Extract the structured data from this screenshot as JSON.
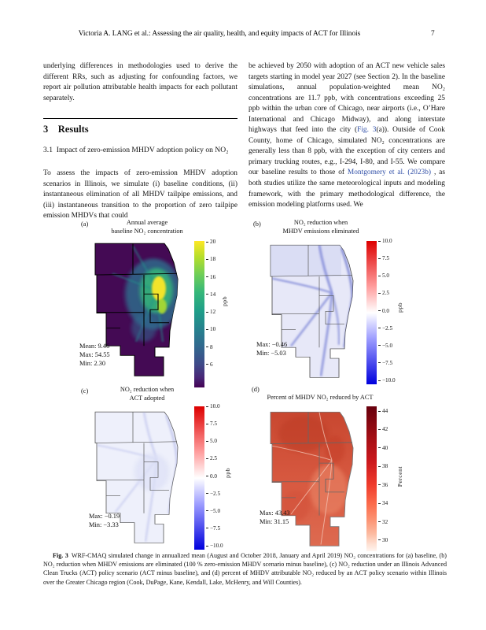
{
  "header": {
    "running_title": "Victoria A. LANG et al.: Assessing the air quality, health, and equity impacts of ACT for Illinois",
    "page_number": "7"
  },
  "left_column": {
    "para1": "underlying differences in methodologies used to derive the different RRs, such as adjusting for confounding factors, we report air pollution attributable health impacts for each pollutant separately.",
    "section_heading": "3 Results",
    "subsection_heading": "3.1 Impact of zero-emission MHDV adoption policy on NO₂",
    "para2": "To assess the impacts of zero-emission MHDV adoption scenarios in Illinois, we simulate (i) baseline conditions, (ii) instantaneous elimination of all MHDV tailpipe emissions, and (iii) instantaneous transition to the proportion of zero tailpipe emission MHDVs that could"
  },
  "right_column": {
    "segments": [
      {
        "t": "be achieved by 2050 with adoption of an ACT new vehicle sales targets starting in model year 2027 (see Section 2). In the baseline simulations, annual population-weighted mean NO₂ concentrations are 11.7 ppb, with concentrations exceeding 25 ppb within the urban core of Chicago, near airports (i.e., O’Hare International and Chicago Midway), and along interstate highways that feed into the city ("
      },
      {
        "t": "Fig. 3",
        "link": true
      },
      {
        "t": "(a)). Outside of Cook County, home of Chicago, simulated NO₂ concentrations are generally less than 8 ppb, with the exception of city centers and primary trucking routes, e.g., I-294, I-80, and I-55. We compare our baseline results to those of "
      },
      {
        "t": "Montgomery et al. (2023b)",
        "link": true
      },
      {
        "t": " , as both studies utilize the same meteorological inputs and modeling framework, with the primary methodological difference, the emission modeling platforms used. We"
      }
    ]
  },
  "figure": {
    "panels": {
      "a": {
        "label": "(a)",
        "title1": "Annual average",
        "title2": "baseline NO₂ concentration",
        "stats": [
          "Mean: 9.46",
          "Max: 54.55",
          "Min: 2.30"
        ],
        "colorbar": {
          "ticks": [
            "20",
            "18",
            "16",
            "14",
            "12",
            "10",
            "8",
            "6"
          ],
          "unit": "ppb",
          "colormap": "viridis"
        }
      },
      "b": {
        "label": "(b)",
        "title1": "NO₂ reduction when",
        "title2": "MHDV emissions eliminated",
        "stats": [
          "Max: −0.46",
          "Min: −5.03"
        ],
        "colorbar": {
          "ticks": [
            "10.0",
            "7.5",
            "5.0",
            "2.5",
            "0.0",
            "−2.5",
            "−5.0",
            "−7.5",
            "−10.0"
          ],
          "unit": "ppb",
          "colormap": "bwr"
        }
      },
      "c": {
        "label": "(c)",
        "title1": "NO₂ reduction when",
        "title2": "ACT adopted",
        "stats": [
          "Max: −0.19",
          "Min: −3.33"
        ],
        "colorbar": {
          "ticks": [
            "10.0",
            "7.5",
            "5.0",
            "2.5",
            "0.0",
            "−2.5",
            "−5.0",
            "−7.5",
            "−10.0"
          ],
          "unit": "ppb",
          "colormap": "bwr"
        }
      },
      "d": {
        "label": "(d)",
        "title1": "Percent of MHDV NO₂ reduced by ACT",
        "title2": "",
        "stats": [
          "Max: 43.43",
          "Min: 31.15"
        ],
        "colorbar": {
          "ticks": [
            "44",
            "42",
            "40",
            "38",
            "36",
            "34",
            "32",
            "30"
          ],
          "unit": "Percent",
          "colormap": "reds"
        }
      }
    },
    "caption_segments": [
      {
        "t": "Fig. 3",
        "b": true
      },
      {
        "t": " WRF-CMAQ simulated change in annualized mean (August and October 2018, January and April 2019) NO₂ concentrations for (a) baseline, (b) NO₂ reduction when MHDV emissions are eliminated (100 % zero-emission MHDV scenario minus baseline), (c) NO₂ reduction under an Illinois Advanced Clean Trucks (ACT) policy scenario (ACT minus baseline), and (d) percent of MHDV attributable NO₂ reduced by an ACT policy scenario within Illinois over the Greater Chicago region (Cook, DuPage, Kane, Kendall, Lake, McHenry, and Will Counties)."
      }
    ]
  },
  "colors": {
    "link_blue": "#3351a8",
    "viridis_top": "#fde725",
    "viridis_bottom": "#440154",
    "bwr_positive": "#dd0000",
    "bwr_negative": "#0000dd",
    "reds_top": "#67000d",
    "reds_bottom": "#fff5f0"
  }
}
